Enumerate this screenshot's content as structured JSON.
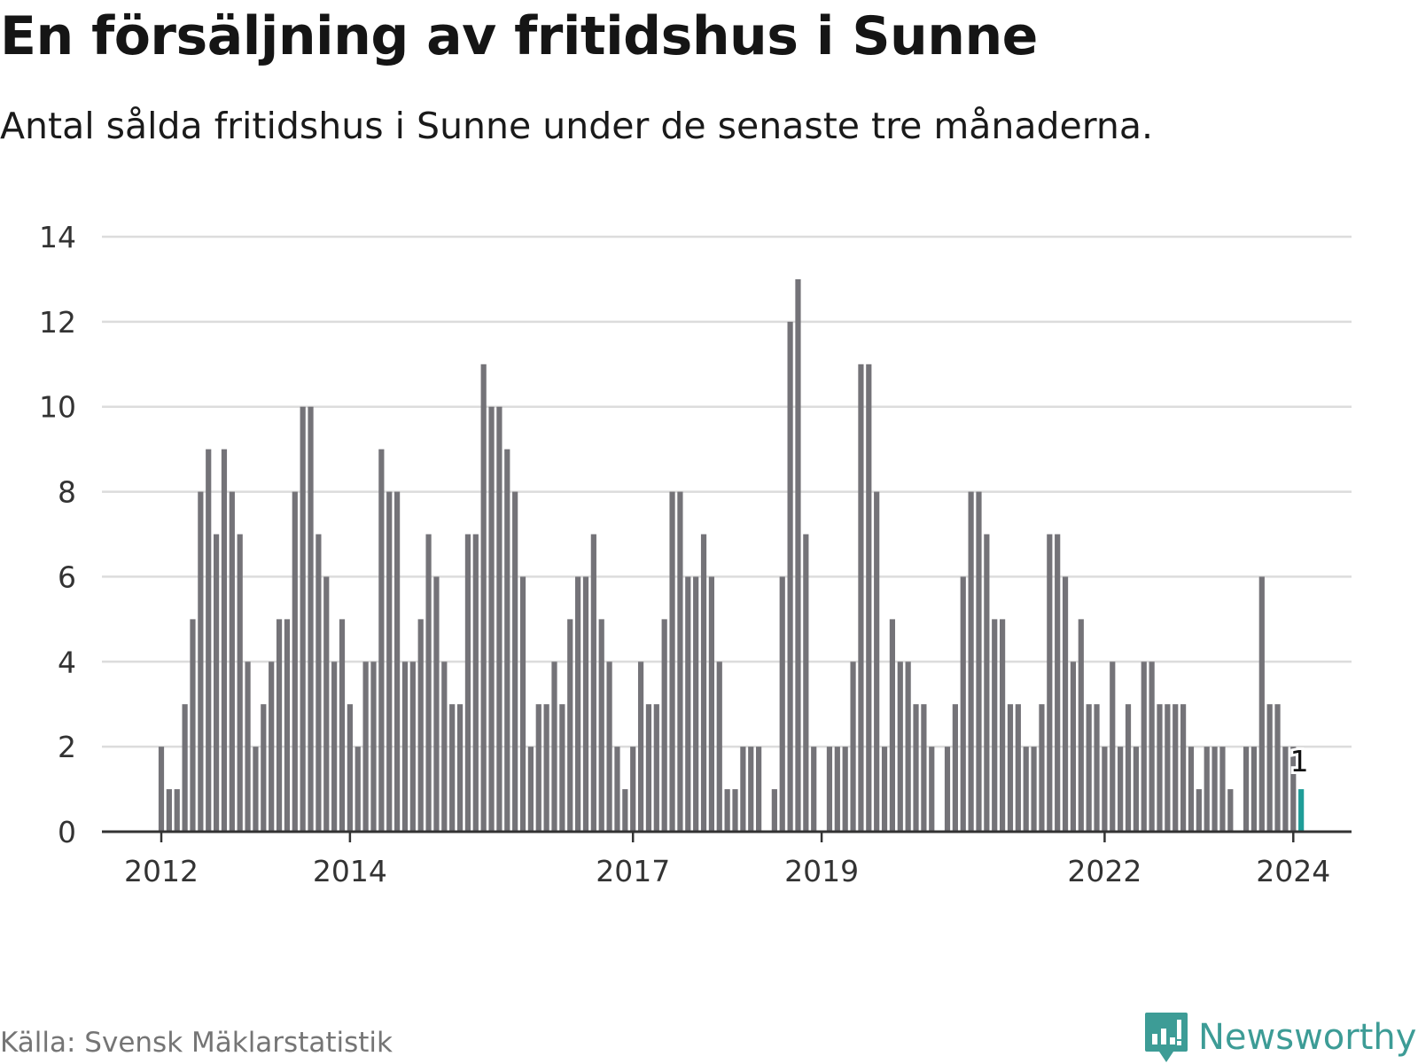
{
  "title": "En försäljning av fritidshus i Sunne",
  "subtitle": "Antal sålda fritidshus i Sunne under de senaste tre månaderna.",
  "source": "Källa: Svensk Mäklarstatistik",
  "brand": "Newsworthy",
  "colors": {
    "bar": "#747378",
    "highlight": "#1f9d98",
    "grid": "#dcdcdc",
    "axis": "#333333",
    "brand": "#3d9c96"
  },
  "chart_data": {
    "type": "bar",
    "title": "En försäljning av fritidshus i Sunne",
    "subtitle": "Antal sålda fritidshus i Sunne under de senaste tre månaderna.",
    "start": "2012-01",
    "frequency": "monthly",
    "values": [
      2,
      1,
      1,
      3,
      5,
      8,
      9,
      7,
      9,
      8,
      7,
      4,
      2,
      3,
      4,
      5,
      5,
      8,
      10,
      10,
      7,
      6,
      4,
      5,
      3,
      2,
      4,
      4,
      9,
      8,
      8,
      4,
      4,
      5,
      7,
      6,
      4,
      3,
      3,
      7,
      7,
      11,
      10,
      10,
      9,
      8,
      6,
      2,
      3,
      3,
      4,
      3,
      5,
      6,
      6,
      7,
      5,
      4,
      2,
      1,
      2,
      4,
      3,
      3,
      5,
      8,
      8,
      6,
      6,
      7,
      6,
      4,
      1,
      1,
      2,
      2,
      2,
      0,
      1,
      6,
      12,
      13,
      7,
      2,
      0,
      2,
      2,
      2,
      4,
      11,
      11,
      8,
      2,
      5,
      4,
      4,
      3,
      3,
      2,
      0,
      2,
      3,
      6,
      8,
      8,
      7,
      5,
      5,
      3,
      3,
      2,
      2,
      3,
      7,
      7,
      6,
      4,
      5,
      3,
      3,
      2,
      4,
      2,
      3,
      2,
      4,
      4,
      3,
      3,
      3,
      3,
      2,
      1,
      2,
      2,
      2,
      1,
      0,
      2,
      2,
      6,
      3,
      3,
      2,
      2,
      1
    ],
    "highlight_last": true,
    "data_label": "1",
    "ylim": [
      0,
      14
    ],
    "y_ticks": [
      0,
      2,
      4,
      6,
      8,
      10,
      12,
      14
    ],
    "x_ticks": [
      {
        "label": "2012",
        "index": 0
      },
      {
        "label": "2014",
        "index": 24
      },
      {
        "label": "2017",
        "index": 60
      },
      {
        "label": "2019",
        "index": 84
      },
      {
        "label": "2022",
        "index": 120
      },
      {
        "label": "2024",
        "index": 144
      }
    ],
    "grid": true,
    "xlabel": "",
    "ylabel": ""
  }
}
